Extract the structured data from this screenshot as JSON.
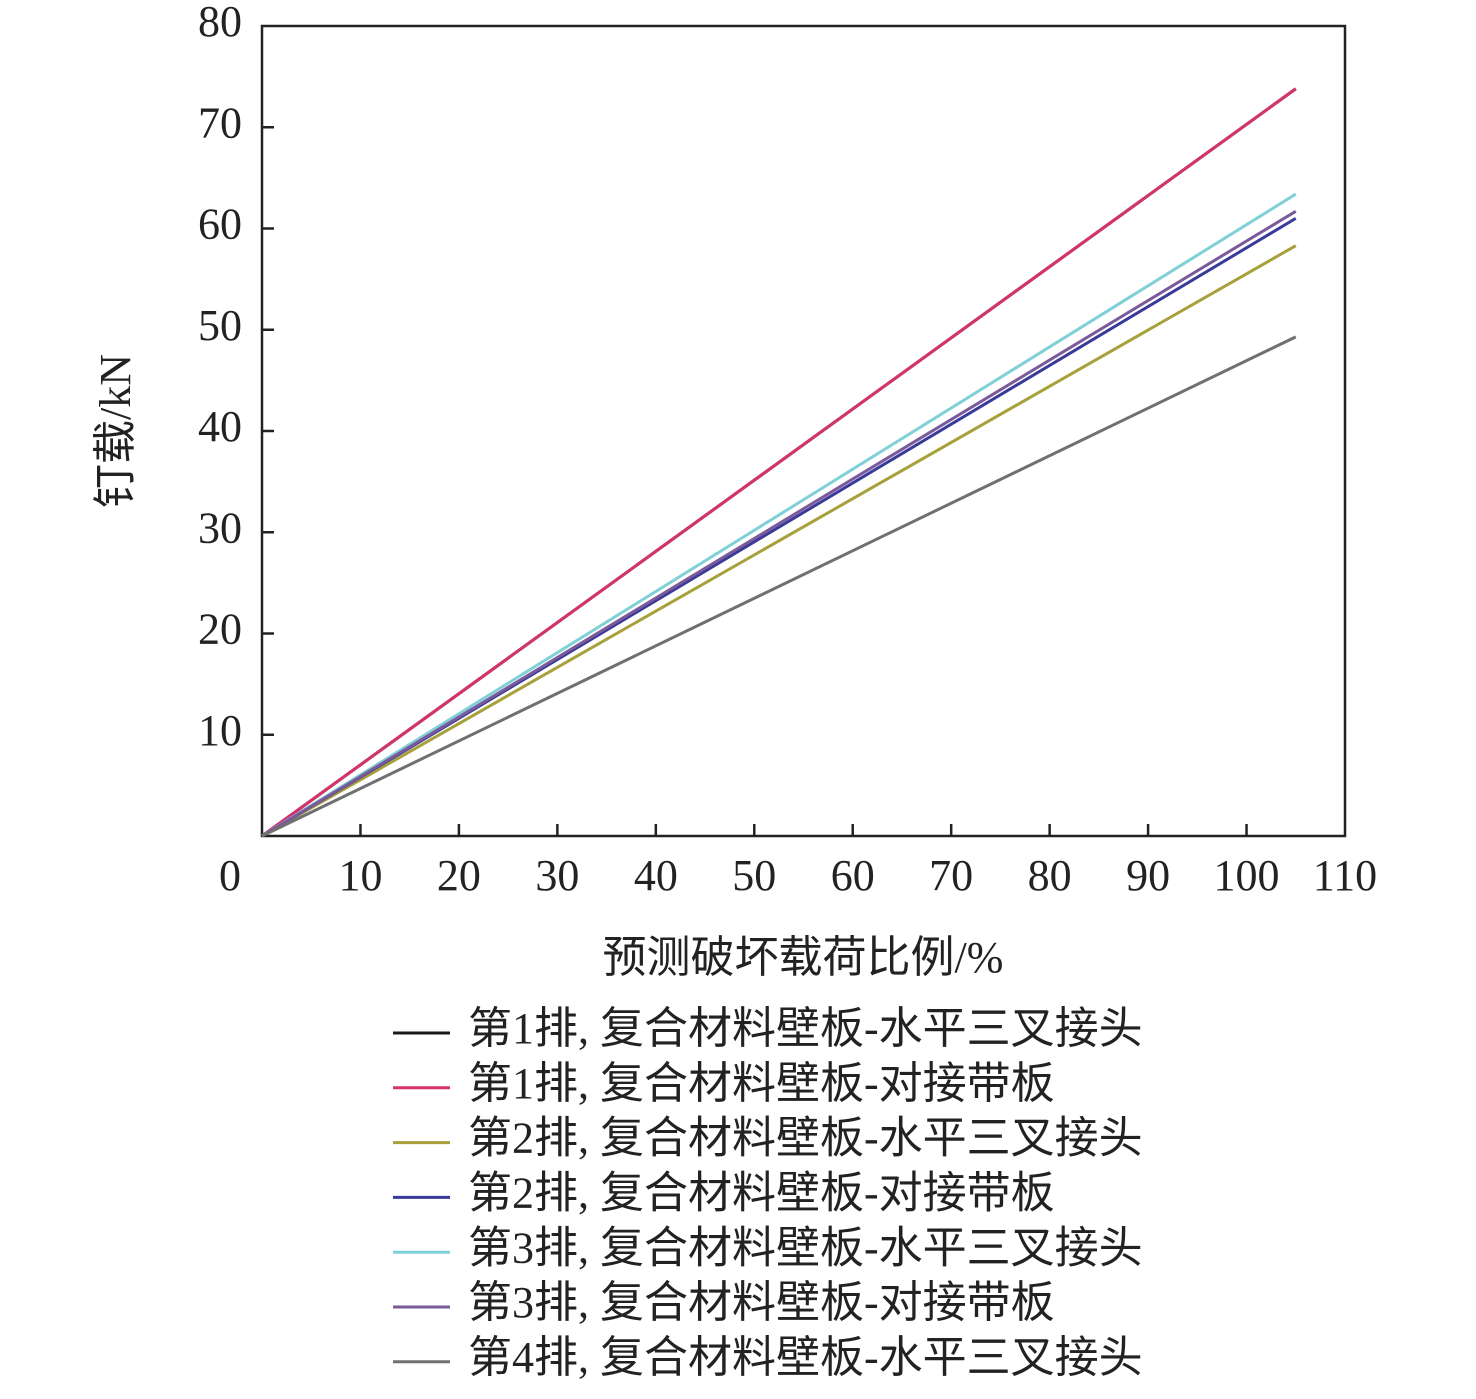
{
  "chart_data": {
    "type": "line",
    "x_label": "预测破坏载荷比例/%",
    "y_label": "钉载/kN",
    "x": [
      0,
      105
    ],
    "series": [
      {
        "name": "第1排, 复合材料壁板-水平三叉接头",
        "color": "#1a1a1a",
        "values": [
          0,
          73.8
        ]
      },
      {
        "name": "第1排, 复合材料壁板-对接带板",
        "color": "#d6336c",
        "values": [
          0,
          73.8
        ]
      },
      {
        "name": "第2排, 复合材料壁板-水平三叉接头",
        "color": "#a8a03a",
        "values": [
          0,
          58.3
        ]
      },
      {
        "name": "第2排, 复合材料壁板-对接带板",
        "color": "#3a3a9a",
        "values": [
          0,
          61.0
        ]
      },
      {
        "name": "第3排, 复合材料壁板-水平三叉接头",
        "color": "#80d0d8",
        "values": [
          0,
          63.4
        ]
      },
      {
        "name": "第3排, 复合材料壁板-对接带板",
        "color": "#7a5a9a",
        "values": [
          0,
          61.7
        ]
      },
      {
        "name": "第4排, 复合材料壁板-水平三叉接头",
        "color": "#707070",
        "values": [
          0,
          49.3
        ]
      }
    ],
    "xlim": [
      0,
      110
    ],
    "xticks": [
      0,
      10,
      20,
      30,
      40,
      50,
      60,
      70,
      80,
      90,
      100,
      110
    ],
    "ylim": [
      0,
      80
    ],
    "yticks": [
      10,
      20,
      30,
      40,
      50,
      60,
      70,
      80
    ],
    "grid": false
  }
}
